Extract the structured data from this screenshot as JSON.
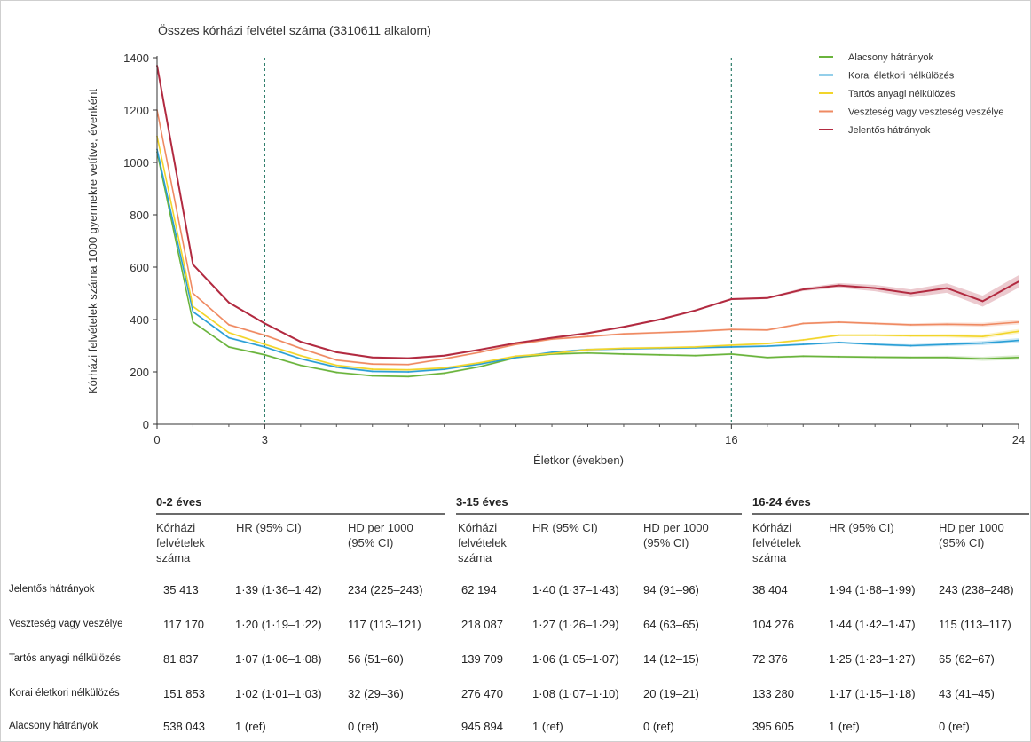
{
  "chart_data": {
    "type": "line",
    "title": "Összes kórházi felvétel száma (3310611 alkalom)",
    "xlabel": "Életkor (években)",
    "ylabel": "Kórházi felvételek száma 1000 gyermekre vetítve, évenként",
    "xlim": [
      0,
      24
    ],
    "ylim": [
      0,
      1400
    ],
    "xticks": [
      "0",
      "3",
      "16",
      "24"
    ],
    "yticks": [
      "0",
      "200",
      "400",
      "600",
      "800",
      "1000",
      "1200",
      "1400"
    ],
    "vlines": [
      3,
      16
    ],
    "grid": false,
    "legend_position": "top-right",
    "x": [
      0,
      1,
      2,
      3,
      4,
      5,
      6,
      7,
      8,
      9,
      10,
      11,
      12,
      13,
      14,
      15,
      16,
      17,
      18,
      19,
      20,
      21,
      22,
      23,
      24
    ],
    "series": [
      {
        "name": "Alacsony hátrányok",
        "color": "#6ab43c",
        "values": [
          1040,
          390,
          295,
          265,
          225,
          198,
          185,
          182,
          195,
          220,
          255,
          268,
          272,
          268,
          265,
          262,
          268,
          255,
          260,
          258,
          256,
          255,
          255,
          250,
          255
        ]
      },
      {
        "name": "Korai életkori nélkülözés",
        "color": "#2a9fd6",
        "values": [
          1050,
          430,
          330,
          295,
          250,
          218,
          202,
          200,
          210,
          230,
          255,
          275,
          285,
          288,
          290,
          292,
          295,
          298,
          305,
          312,
          305,
          300,
          305,
          310,
          320
        ]
      },
      {
        "name": "Tartós anyagi nélkülözés",
        "color": "#f2d52a",
        "values": [
          1100,
          450,
          350,
          305,
          262,
          225,
          210,
          208,
          215,
          235,
          260,
          270,
          285,
          290,
          292,
          295,
          302,
          308,
          322,
          340,
          340,
          338,
          338,
          335,
          355
        ]
      },
      {
        "name": "Veszteség vagy veszteség veszélye",
        "color": "#ef8a62",
        "values": [
          1200,
          500,
          380,
          340,
          290,
          245,
          230,
          228,
          250,
          275,
          305,
          325,
          335,
          345,
          350,
          355,
          362,
          360,
          385,
          390,
          385,
          380,
          382,
          380,
          390
        ]
      },
      {
        "name": "Jelentős hátrányok",
        "color": "#b22a40",
        "values": [
          1370,
          610,
          465,
          385,
          315,
          275,
          255,
          252,
          262,
          285,
          310,
          330,
          348,
          372,
          400,
          435,
          478,
          482,
          515,
          530,
          520,
          500,
          520,
          470,
          545
        ]
      }
    ]
  },
  "table": {
    "groups": [
      "0-2 éves",
      "3-15 éves",
      "16-24 éves"
    ],
    "col_count": "Kórházi felvételek száma",
    "col_hr": "HR (95% CI)",
    "col_hd": "HD per 1000 (95% CI)",
    "rows": [
      {
        "label": "Jelentős hátrányok",
        "cells": [
          "35 413",
          "1·39 (1·36–1·42)",
          "234 (225–243)",
          "62 194",
          "1·40 (1·37–1·43)",
          "94 (91–96)",
          "38 404",
          "1·94 (1·88–1·99)",
          "243 (238–248)"
        ]
      },
      {
        "label": "Veszteség vagy veszélye",
        "cells": [
          "117 170",
          "1·20 (1·19–1·22)",
          "117 (113–121)",
          "218 087",
          "1·27 (1·26–1·29)",
          "64 (63–65)",
          "104 276",
          "1·44 (1·42–1·47)",
          "115 (113–117)"
        ]
      },
      {
        "label": "Tartós anyagi nélkülözés",
        "cells": [
          "81 837",
          "1·07 (1·06–1·08)",
          "56 (51–60)",
          "139 709",
          "1·06 (1·05–1·07)",
          "14 (12–15)",
          "72 376",
          "1·25 (1·23–1·27)",
          "65 (62–67)"
        ]
      },
      {
        "label": "Korai életkori nélkülözés",
        "cells": [
          "151 853",
          "1·02 (1·01–1·03)",
          "32 (29–36)",
          "276 470",
          "1·08 (1·07–1·10)",
          "20 (19–21)",
          "133 280",
          "1·17 (1·15–1·18)",
          "43 (41–45)"
        ]
      },
      {
        "label": "Alacsony hátrányok",
        "cells": [
          "538 043",
          "1 (ref)",
          "0 (ref)",
          "945 894",
          "1 (ref)",
          "0 (ref)",
          "395 605",
          "1 (ref)",
          "0 (ref)"
        ]
      }
    ]
  }
}
